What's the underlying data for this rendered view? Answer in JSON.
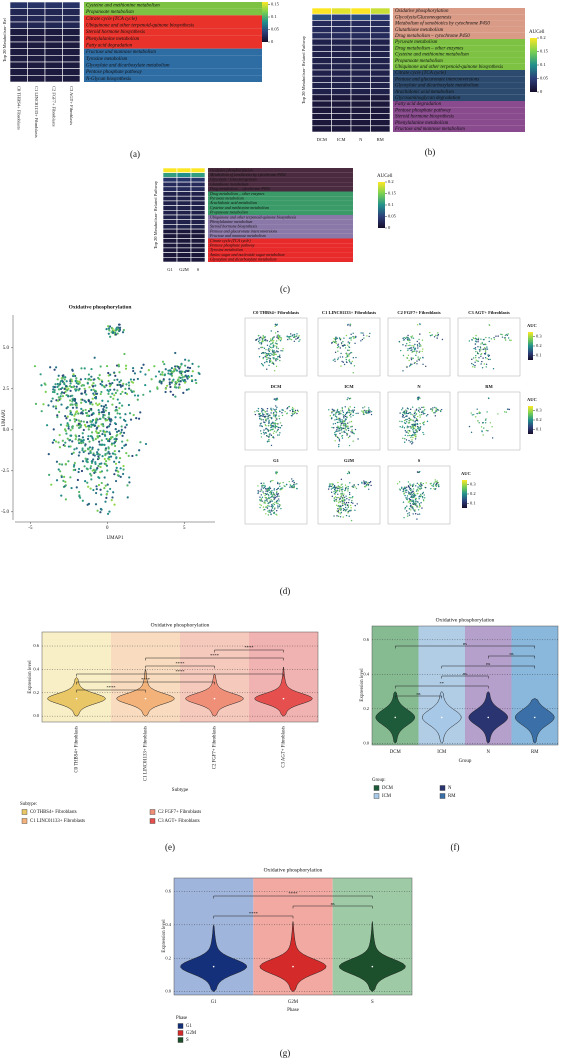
{
  "panels": {
    "heatmaps": [
      {
        "label": "(a)",
        "y_label": "Top 20 Metabolism- Rel",
        "columns": [
          "C0 THBS4+ Fibroblasts",
          "C1 LINC01133+ Fibroblasts",
          "C2 FGF7+ Fibroblasts",
          "C3 AGT+ Fibroblasts"
        ],
        "pathways": [
          "Cysteine and methionine metabolism",
          "Propanoate metabolism",
          "Citrate cycle (TCA cycle)",
          "Ubiquinone and other terpenoid-quinone biosynthesis",
          "Steroid hormone biosynthesis",
          "Phenylalanine metabolism",
          "Fatty acid degradation",
          "Fructose and mannose metabolism",
          "Tyrosine metabolism",
          "Glyoxylate and dicarboxylate metabolism",
          "Pentose phosphate pathway",
          "N-Glycan biosynthesis"
        ],
        "pathway_colors": [
          "#7dc242",
          "#7dc242",
          "#e8322a",
          "#e8322a",
          "#e8322a",
          "#e8322a",
          "#e8322a",
          "#2e6ca4",
          "#2e6ca4",
          "#2e6ca4",
          "#2e6ca4",
          "#2e6ca4"
        ],
        "values": [
          [
            0.03,
            0.03,
            0.03,
            0.03
          ],
          [
            0.02,
            0.02,
            0.02,
            0.02
          ],
          [
            0.02,
            0.02,
            0.02,
            0.02
          ],
          [
            0.02,
            0.02,
            0.02,
            0.02
          ],
          [
            0.01,
            0.01,
            0.01,
            0.01
          ],
          [
            0.01,
            0.01,
            0.01,
            0.01
          ],
          [
            0.01,
            0.01,
            0.01,
            0.01
          ],
          [
            0.01,
            0.01,
            0.01,
            0.01
          ],
          [
            0.01,
            0.01,
            0.01,
            0.01
          ],
          [
            0.01,
            0.01,
            0.01,
            0.01
          ],
          [
            0.01,
            0.01,
            0.01,
            0.01
          ],
          [
            0.01,
            0.01,
            0.01,
            0.01
          ]
        ],
        "colorbar_lim": [
          0,
          0.16
        ],
        "colorbar_ticks": [
          0.15,
          0.1,
          0.05,
          0
        ]
      },
      {
        "label": "(b)",
        "y_label": "Top 20 Metabolism- Related Pathway",
        "colorbar_title": "AUCell",
        "columns": [
          "DCM",
          "ICM",
          "N",
          "RM"
        ],
        "pathways": [
          "Oxidative phosphorylation",
          "Glycolysis/Gluconeogenesis",
          "Metabolism of xenobiotics by cytochrome P450",
          "Glutathione metabolism",
          "Drug metabolism – cytochrome P450",
          "Pyruvate metabolism",
          "Drug metabolism – other enzymes",
          "Cysteine and methionine metabolism",
          "Propanoate metabolism",
          "Ubiquinone and other terpenoid-quinone biosynthesis",
          "Citrate cycle (TCA cycle)",
          "Pentose and glucuronate interconversions",
          "Glyoxylate and dicarboxylate metabolism",
          "Arachidonic acid metabolism",
          "Glycosaminoglycan degradation",
          "Fatty acid degradation",
          "Pentose phosphate pathway",
          "Steroid hormone biosynthesis",
          "Phenylalanine metabolism",
          "Fructose and mannose metabolism"
        ],
        "pathway_colors": [
          "#d99a86",
          "#d99a86",
          "#d99a86",
          "#d99a86",
          "#d99a86",
          "#7dc242",
          "#7dc242",
          "#7dc242",
          "#7dc242",
          "#7dc242",
          "#2b4a6e",
          "#2b4a6e",
          "#2b4a6e",
          "#2b4a6e",
          "#2b4a6e",
          "#8a4a8e",
          "#8a4a8e",
          "#8a4a8e",
          "#8a4a8e",
          "#8a4a8e"
        ],
        "values": [
          [
            0.2,
            0.19,
            0.2,
            0.18
          ],
          [
            0.06,
            0.05,
            0.06,
            0.05
          ],
          [
            0.03,
            0.03,
            0.03,
            0.03
          ],
          [
            0.03,
            0.03,
            0.03,
            0.03
          ],
          [
            0.03,
            0.03,
            0.03,
            0.03
          ],
          [
            0.02,
            0.02,
            0.02,
            0.02
          ],
          [
            0.02,
            0.02,
            0.02,
            0.02
          ],
          [
            0.02,
            0.02,
            0.02,
            0.02
          ],
          [
            0.02,
            0.02,
            0.02,
            0.02
          ],
          [
            0.02,
            0.02,
            0.02,
            0.02
          ],
          [
            0.02,
            0.02,
            0.02,
            0.02
          ],
          [
            0.02,
            0.02,
            0.02,
            0.02
          ],
          [
            0.02,
            0.02,
            0.02,
            0.02
          ],
          [
            0.02,
            0.02,
            0.02,
            0.02
          ],
          [
            0.01,
            0.01,
            0.01,
            0.01
          ],
          [
            0.01,
            0.01,
            0.01,
            0.01
          ],
          [
            0.01,
            0.01,
            0.01,
            0.01
          ],
          [
            0.01,
            0.01,
            0.01,
            0.01
          ],
          [
            0.01,
            0.01,
            0.01,
            0.01
          ],
          [
            0.01,
            0.01,
            0.01,
            0.01
          ]
        ],
        "colorbar_lim": [
          0,
          0.2
        ],
        "colorbar_ticks": [
          0.2,
          0.15,
          0.1,
          0.05,
          0
        ]
      },
      {
        "label": "(c)",
        "y_label": "Top 20 Metabolism- Related Pathway",
        "colorbar_title": "AUCell",
        "columns": [
          "G1",
          "G2M",
          "S"
        ],
        "pathways": [
          "Oxidative phosphorylation",
          "Metabolism of xenobiotics by cytochrome P450",
          "Glycolysis / Gluconeogenesis",
          "Glutathione metabolism",
          "Drug metabolism – cytochrome P450",
          "Drug metabolism – other enzymes",
          "Pyruvate metabolism",
          "Arachidonic acid metabolism",
          "Cysteine and methionine metabolism",
          "Propanoate metabolism",
          "Ubiquinone and other terpenoid-quinone biosynthesis",
          "Phenylalanine metabolism",
          "Steroid hormone biosynthesis",
          "Pentose and glucuronate interconversions",
          "Fructose and mannose metabolism",
          "Citrate cycle (TCA cycle)",
          "Pentose phosphate pathway",
          "Tyrosine metabolism",
          "Amino sugar and nucleotide sugar metabolism",
          "Glyoxylate and dicarboxylate metabolism"
        ],
        "pathway_colors": [
          "#4a2a3e",
          "#4a2a3e",
          "#4a2a3e",
          "#4a2a3e",
          "#4a2a3e",
          "#3a9a68",
          "#3a9a68",
          "#3a9a68",
          "#3a9a68",
          "#3a9a68",
          "#8a78a8",
          "#8a78a8",
          "#8a78a8",
          "#8a78a8",
          "#8a78a8",
          "#e82a2a",
          "#e82a2a",
          "#e82a2a",
          "#e82a2a",
          "#e82a2a"
        ],
        "values": [
          [
            0.2,
            0.2,
            0.2
          ],
          [
            0.11,
            0.1,
            0.11
          ],
          [
            0.04,
            0.04,
            0.04
          ],
          [
            0.03,
            0.03,
            0.03
          ],
          [
            0.03,
            0.03,
            0.03
          ],
          [
            0.02,
            0.02,
            0.02
          ],
          [
            0.02,
            0.02,
            0.02
          ],
          [
            0.02,
            0.02,
            0.02
          ],
          [
            0.02,
            0.02,
            0.02
          ],
          [
            0.02,
            0.02,
            0.02
          ],
          [
            0.02,
            0.02,
            0.02
          ],
          [
            0.02,
            0.02,
            0.02
          ],
          [
            0.02,
            0.02,
            0.02
          ],
          [
            0.01,
            0.01,
            0.01
          ],
          [
            0.01,
            0.01,
            0.01
          ],
          [
            0.01,
            0.01,
            0.01
          ],
          [
            0.01,
            0.01,
            0.01
          ],
          [
            0.01,
            0.01,
            0.01
          ],
          [
            0.01,
            0.01,
            0.01
          ],
          [
            0.01,
            0.01,
            0.01
          ]
        ],
        "colorbar_lim": [
          0,
          0.2
        ],
        "colorbar_ticks": [
          0.2,
          0.15,
          0.1,
          0.05,
          0
        ]
      }
    ],
    "umap": {
      "label": "(d)",
      "title": "Oxidative phosphorylation",
      "x_label": "UMAP1",
      "y_label": "UMAP2",
      "xlim": [
        -6,
        7
      ],
      "ylim": [
        -5.5,
        7
      ],
      "xticks": [
        -5,
        0,
        5
      ],
      "yticks": [
        {
          "value": 5,
          "label": "5.0"
        },
        2.5,
        {
          "value": 0,
          "label": "0.0"
        },
        -2.5,
        {
          "value": -5,
          "label": "-5.0"
        }
      ],
      "small_titles": [
        [
          "C0 THBS4+ Fibroblasts",
          "C1 LINC01133+ Fibroblasts",
          "C2 FGF7+ Fibroblasts",
          "C3 AGT+ Fibroblasts"
        ],
        [
          "DCM",
          "ICM",
          "N",
          "RM"
        ],
        [
          "G1",
          "G2M",
          "S"
        ]
      ],
      "colorbar_title": "AUC",
      "colorbar_lim": [
        0.05,
        0.35
      ],
      "colorbar_ticks": [
        0.3,
        0.2,
        0.1
      ]
    },
    "violins": [
      {
        "label": "(e)",
        "title": "Oxidative phosphorylation",
        "y_label": "Expression level",
        "x_label": "Subtype",
        "legend_title": "Subtype:",
        "categories": [
          "C0 THBS4+ Fibroblasts",
          "C1 LINC01133+ Fibroblasts",
          "C2 FGF7+ Fibroblasts",
          "C3 AGT+ Fibroblasts"
        ],
        "colors": [
          "#e9c766",
          "#f2b27a",
          "#ef8f78",
          "#e5504f"
        ],
        "backgrounds": [
          "#f8efc6",
          "#f9dcc0",
          "#f6c9bd",
          "#f1b3b1"
        ],
        "ylim": [
          -0.05,
          0.72
        ],
        "yticks": [
          {
            "value": 0,
            "label": "0.0"
          },
          0.2,
          0.4,
          0.6
        ],
        "significance": [
          "****",
          "****",
          "****",
          "****",
          "****",
          "****"
        ]
      },
      {
        "label": "(f)",
        "title": "Oxidative phosphorylation",
        "y_label": "Expression level",
        "x_label": "Group",
        "legend_title": "Group:",
        "categories": [
          "DCM",
          "ICM",
          "N",
          "RM"
        ],
        "colors": [
          "#1e5b3a",
          "#a8c8e8",
          "#2a3470",
          "#3a6fa8"
        ],
        "backgrounds": [
          "#86bb91",
          "#b1cde6",
          "#b5a0cc",
          "#8ab8dd"
        ],
        "ylim": [
          -0.01,
          0.68
        ],
        "yticks": [
          {
            "value": 0,
            "label": "0.0"
          },
          0.2,
          0.4,
          0.6
        ],
        "significance": [
          "ns",
          "**",
          "ns",
          "ns",
          "ns",
          "ns"
        ]
      },
      {
        "label": "(g)",
        "title": "Oxidative phosphorylation",
        "y_label": "Expression level",
        "x_label": "Phase",
        "legend_title": "Phase",
        "categories": [
          "G1",
          "G2M",
          "S"
        ],
        "colors": [
          "#15307a",
          "#d42a2a",
          "#1c4f2b"
        ],
        "backgrounds": [
          "#9fb5db",
          "#f2a9a2",
          "#9ecba6"
        ],
        "ylim": [
          -0.02,
          0.68
        ],
        "yticks": [
          {
            "value": 0,
            "label": "0.0"
          },
          0.2,
          0.4,
          0.6
        ],
        "significance": [
          "****",
          "ns",
          "****"
        ]
      }
    ]
  }
}
